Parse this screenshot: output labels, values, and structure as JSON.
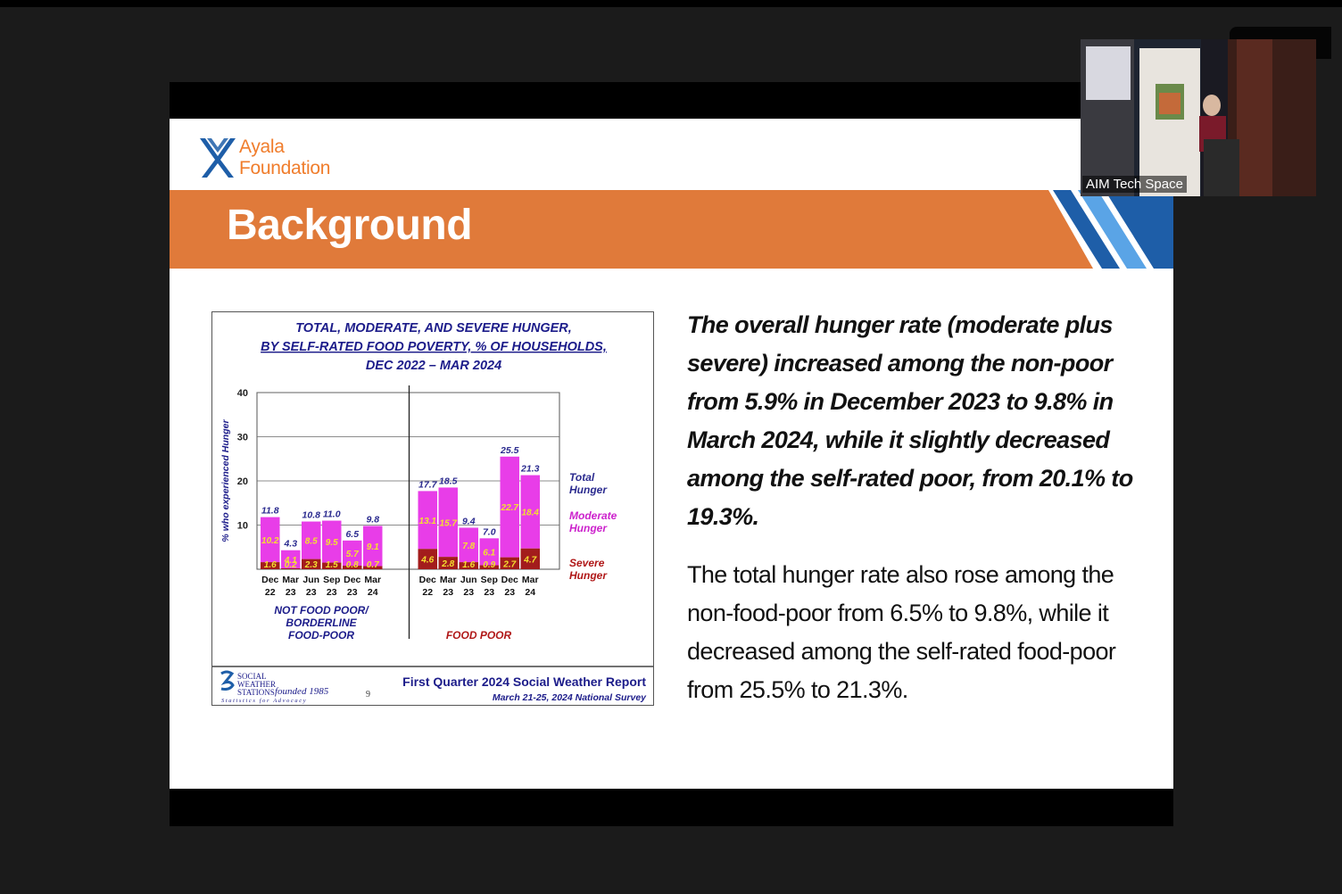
{
  "logo": {
    "line1": "Ayala",
    "line2": "Foundation"
  },
  "slide_title": "Background",
  "chart_title": {
    "line1": "TOTAL, MODERATE, AND SEVERE HUNGER,",
    "line2": "BY SELF-RATED FOOD POVERTY, % OF HOUSEHOLDS,",
    "line3": "DEC 2022 – MAR 2024"
  },
  "chart_data": {
    "type": "bar",
    "stacked": true,
    "ylabel": "% who experienced Hunger",
    "ylim": [
      0,
      40
    ],
    "yticks": [
      10,
      20,
      30,
      40
    ],
    "grid": true,
    "groups": [
      {
        "label_lines": [
          "NOT FOOD POOR/",
          "BORDERLINE",
          "FOOD-POOR"
        ],
        "categories": [
          [
            "Dec",
            "22"
          ],
          [
            "Mar",
            "23"
          ],
          [
            "Jun",
            "23"
          ],
          [
            "Sep",
            "23"
          ],
          [
            "Dec",
            "23"
          ],
          [
            "Mar",
            "24"
          ]
        ],
        "total": [
          11.8,
          4.3,
          10.8,
          11.0,
          6.5,
          9.8
        ],
        "moderate": [
          10.2,
          4.1,
          8.5,
          9.5,
          5.7,
          9.1
        ],
        "severe": [
          1.6,
          0.2,
          2.3,
          1.5,
          0.8,
          0.7
        ]
      },
      {
        "label_lines": [
          "FOOD POOR"
        ],
        "categories": [
          [
            "Dec",
            "22"
          ],
          [
            "Mar",
            "23"
          ],
          [
            "Jun",
            "23"
          ],
          [
            "Sep",
            "23"
          ],
          [
            "Dec",
            "23"
          ],
          [
            "Mar",
            "24"
          ]
        ],
        "total": [
          17.7,
          18.5,
          9.4,
          7.0,
          25.5,
          21.3
        ],
        "moderate": [
          13.1,
          15.7,
          7.8,
          6.1,
          22.7,
          18.4
        ],
        "severe": [
          4.6,
          2.8,
          1.6,
          0.9,
          2.7,
          4.7
        ]
      }
    ],
    "legend": [
      {
        "lines": [
          "Total",
          "Hunger"
        ],
        "color": "#2b2b8f"
      },
      {
        "lines": [
          "Moderate",
          "Hunger"
        ],
        "color": "#cc22cc"
      },
      {
        "lines": [
          "Severe",
          "Hunger"
        ],
        "color": "#b01818"
      }
    ],
    "legend_placement": "right",
    "colors": {
      "moderate": "#e83de8",
      "severe": "#a31c1c",
      "total_label": "#2b2b8f",
      "inner_label": "#f4e030"
    }
  },
  "chart_footer": {
    "sws_lines": [
      "SOCIAL",
      "WEATHER",
      "STATIONS"
    ],
    "founded": "founded 1985",
    "tagline": "Statistics for Advocacy",
    "page": "9",
    "report": "First Quarter 2024 Social Weather Report",
    "survey": "March 21-25, 2024 National Survey"
  },
  "paragraph1": "The overall hunger rate (moderate plus severe) increased among the non-poor from 5.9% in December 2023 to 9.8% in March 2024, while it slightly decreased among the self-rated poor, from 20.1% to 19.3%.",
  "paragraph2": "The total hunger rate also rose among the non-food-poor from 6.5% to 9.8%, while it decreased among the self-rated food-poor from 25.5% to 21.3%.",
  "webcam": {
    "label": "AIM Tech Space"
  },
  "colors": {
    "banner_orange": "#e07a3a",
    "stripe_dark": "#1e5ea8",
    "stripe_light": "#5aa4e6",
    "logo_orange": "#f07d2c"
  }
}
